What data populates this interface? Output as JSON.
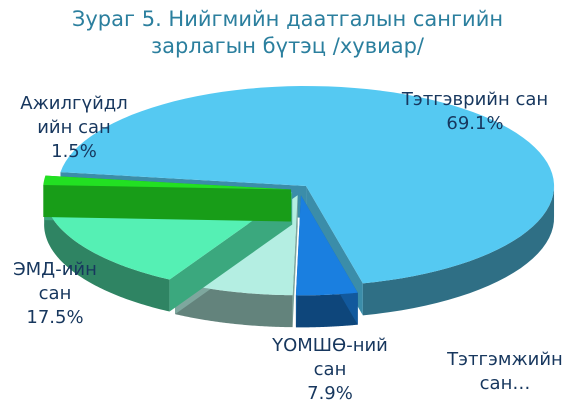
{
  "chart_data": {
    "type": "pie",
    "title": "Зураг 5. Нийгмийн даатгалын сангийн",
    "subtitle": "зарлагын бүтэц /хувиар/",
    "categories": [
      "Тэтгэврийн сан",
      "Тэтгэмжийн сан…",
      "ҮОМШӨ-ний сан",
      "ЭМД-ийн сан",
      "Ажилгүйдлийн сан"
    ],
    "values": [
      69.1,
      4.0,
      7.9,
      17.5,
      1.5
    ],
    "value_labels": [
      "69.1%",
      null,
      "7.9%",
      "17.5%",
      "1.5%"
    ],
    "colors": [
      "#55c9f2",
      "#1a7fe0",
      "#b4eee2",
      "#55f0b4",
      "#22e022"
    ]
  }
}
